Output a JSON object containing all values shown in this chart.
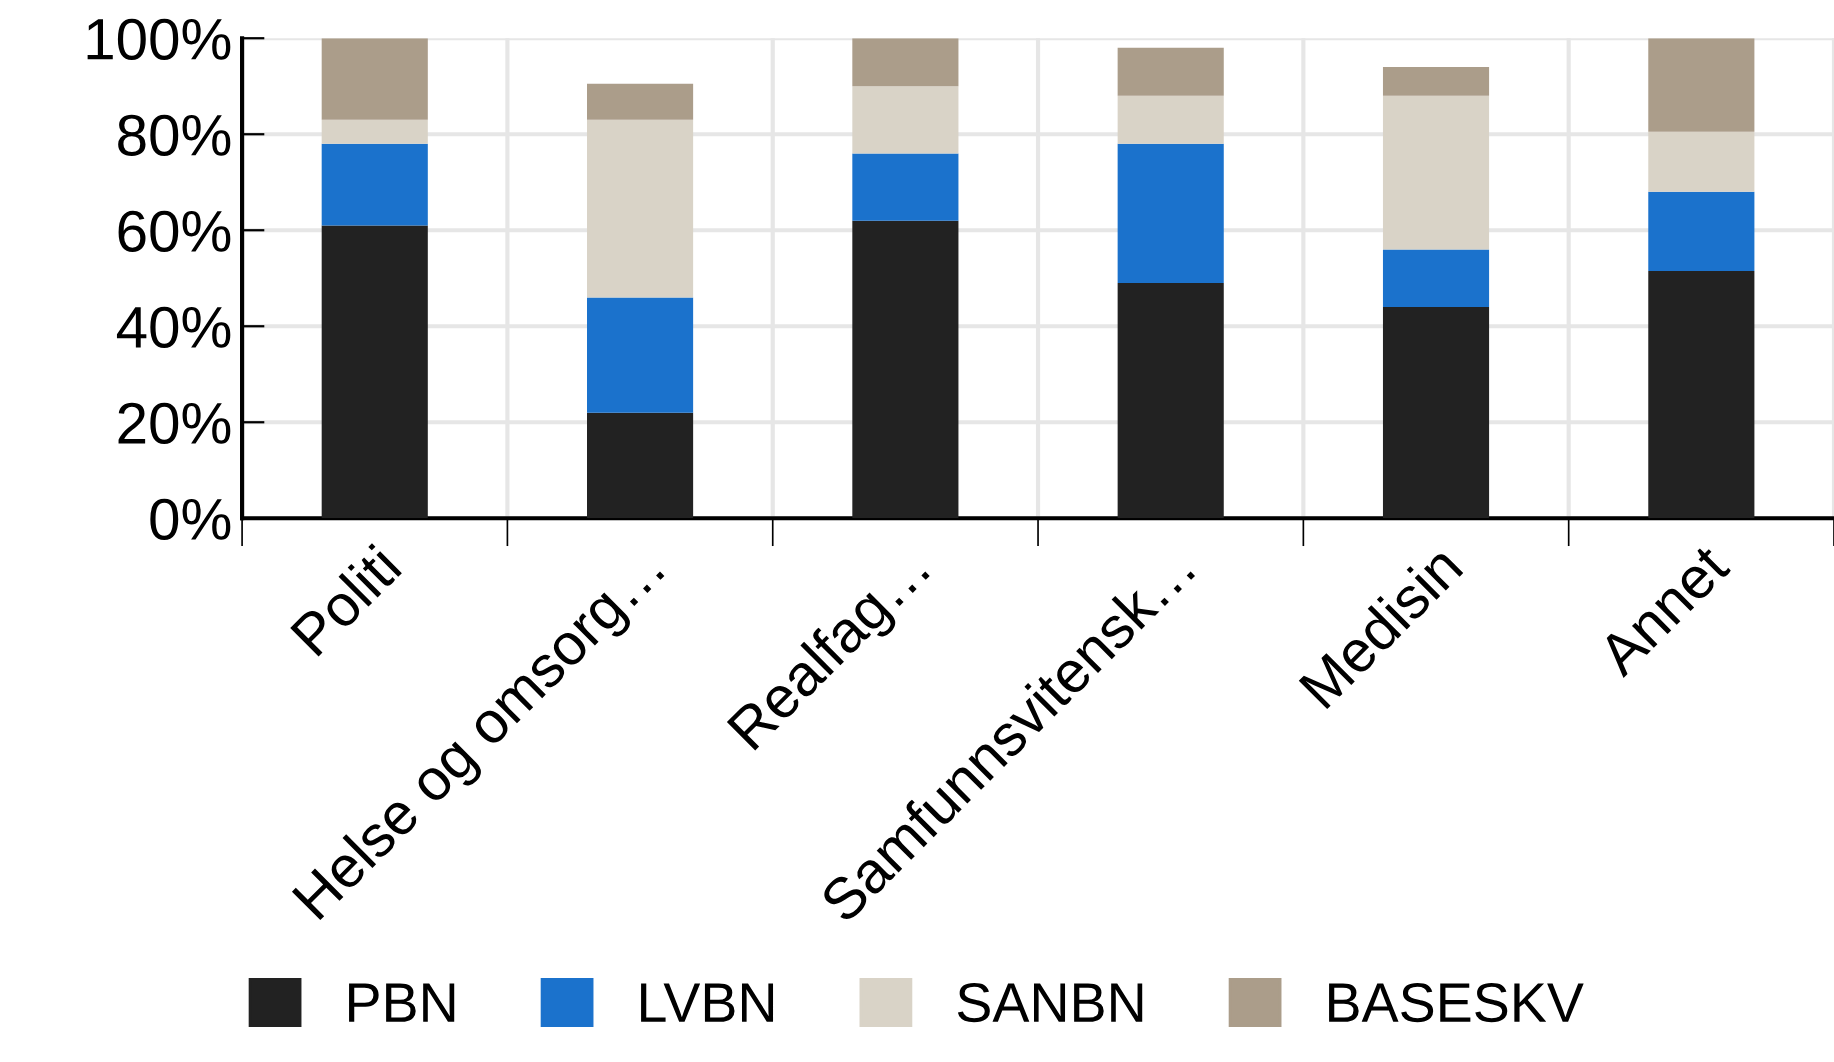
{
  "chart_data": {
    "type": "bar",
    "stacked": true,
    "categories": [
      "Politi",
      "Helse og omsorg…",
      "Realfag…",
      "Samfunnsvitensk…",
      "Medisin",
      "Annet"
    ],
    "series": [
      {
        "name": "PBN",
        "color": "#222222",
        "values": [
          61,
          22,
          62,
          49,
          44,
          51.5
        ]
      },
      {
        "name": "LVBN",
        "color": "#1b72cc",
        "values": [
          17,
          24,
          14,
          29,
          12,
          16.5
        ]
      },
      {
        "name": "SANBN",
        "color": "#d9d3c7",
        "values": [
          5,
          37,
          14,
          10,
          32,
          12.5
        ]
      },
      {
        "name": "BASESKV",
        "color": "#ab9d8a",
        "values": [
          17,
          7.5,
          10,
          10,
          6,
          19.5
        ]
      }
    ],
    "ylim": [
      0,
      100
    ],
    "yticks": [
      {
        "value": 0,
        "label": "0%"
      },
      {
        "value": 20,
        "label": "20%"
      },
      {
        "value": 40,
        "label": "40%"
      },
      {
        "value": 60,
        "label": "60%"
      },
      {
        "value": 80,
        "label": "80%"
      },
      {
        "value": 100,
        "label": "100%"
      }
    ],
    "grid": true,
    "legend": "bottom"
  }
}
